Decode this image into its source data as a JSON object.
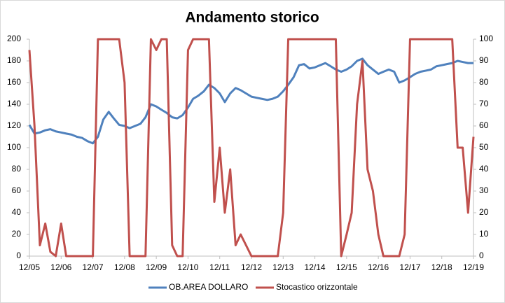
{
  "chart_data": {
    "type": "line",
    "title": "Andamento storico",
    "x": [
      2005.92,
      2006.08,
      2006.25,
      2006.42,
      2006.58,
      2006.75,
      2006.92,
      2007.08,
      2007.25,
      2007.42,
      2007.58,
      2007.75,
      2007.92,
      2008.08,
      2008.25,
      2008.42,
      2008.58,
      2008.75,
      2008.92,
      2009.08,
      2009.25,
      2009.42,
      2009.58,
      2009.75,
      2009.92,
      2010.08,
      2010.25,
      2010.42,
      2010.58,
      2010.75,
      2010.92,
      2011.08,
      2011.25,
      2011.42,
      2011.58,
      2011.75,
      2011.92,
      2012.08,
      2012.25,
      2012.42,
      2012.58,
      2012.75,
      2012.92,
      2013.08,
      2013.25,
      2013.42,
      2013.58,
      2013.75,
      2013.92,
      2014.08,
      2014.25,
      2014.42,
      2014.58,
      2014.75,
      2014.92,
      2015.08,
      2015.25,
      2015.42,
      2015.58,
      2015.75,
      2015.92,
      2016.08,
      2016.25,
      2016.42,
      2016.58,
      2016.75,
      2016.92,
      2017.08,
      2017.25,
      2017.42,
      2017.58,
      2017.75,
      2017.92,
      2018.08,
      2018.25,
      2018.42,
      2018.58,
      2018.75,
      2018.92,
      2019.08,
      2019.25,
      2019.42,
      2019.58,
      2019.75,
      2019.92
    ],
    "series": [
      {
        "name": "OB.AREA DOLLARO",
        "color": "#4f81bd",
        "values": [
          121,
          113,
          114,
          116,
          117,
          115,
          114,
          113,
          112,
          110,
          109,
          106,
          104,
          110,
          126,
          133,
          127,
          121,
          120,
          118,
          120,
          122,
          128,
          140,
          138,
          135,
          132,
          128,
          127,
          130,
          137,
          145,
          148,
          152,
          158,
          155,
          150,
          142,
          150,
          155,
          153,
          150,
          147,
          146,
          145,
          144,
          145,
          147,
          152,
          158,
          165,
          176,
          177,
          173,
          174,
          176,
          178,
          175,
          172,
          170,
          172,
          175,
          180,
          182,
          176,
          172,
          168,
          170,
          172,
          170,
          160,
          162,
          165,
          168,
          170,
          171,
          172,
          175,
          176,
          177,
          178,
          180,
          179,
          178,
          178
        ]
      },
      {
        "name": "Stocastico orizzontale",
        "color": "#c0504d",
        "axis": "y2",
        "values": [
          95,
          60,
          5,
          15,
          2,
          0,
          15,
          0,
          0,
          0,
          0,
          0,
          0,
          100,
          100,
          100,
          100,
          100,
          80,
          0,
          0,
          0,
          0,
          100,
          95,
          100,
          100,
          5,
          0,
          0,
          95,
          100,
          100,
          100,
          100,
          25,
          50,
          20,
          40,
          5,
          10,
          5,
          0,
          0,
          0,
          0,
          0,
          0,
          20,
          100,
          100,
          100,
          100,
          100,
          100,
          100,
          100,
          100,
          100,
          0,
          10,
          20,
          70,
          90,
          40,
          30,
          10,
          0,
          0,
          0,
          0,
          10,
          100,
          100,
          100,
          100,
          100,
          100,
          100,
          100,
          100,
          50,
          50,
          20,
          55
        ]
      }
    ],
    "xlim": [
      2005.92,
      2019.92
    ],
    "xticks": [
      {
        "value": 2005.92,
        "label": "12/05"
      },
      {
        "value": 2006.92,
        "label": "12/06"
      },
      {
        "value": 2007.92,
        "label": "12/07"
      },
      {
        "value": 2008.92,
        "label": "12/08"
      },
      {
        "value": 2009.92,
        "label": "12/09"
      },
      {
        "value": 2010.92,
        "label": "12/10"
      },
      {
        "value": 2011.92,
        "label": "12/11"
      },
      {
        "value": 2012.92,
        "label": "12/12"
      },
      {
        "value": 2013.92,
        "label": "12/13"
      },
      {
        "value": 2014.92,
        "label": "12/14"
      },
      {
        "value": 2015.92,
        "label": "12/15"
      },
      {
        "value": 2016.92,
        "label": "12/16"
      },
      {
        "value": 2017.92,
        "label": "12/17"
      },
      {
        "value": 2018.92,
        "label": "12/18"
      },
      {
        "value": 2019.92,
        "label": "12/19"
      }
    ],
    "ylim": [
      0,
      200
    ],
    "yticks": [
      0,
      20,
      40,
      60,
      80,
      100,
      120,
      140,
      160,
      180,
      200
    ],
    "y2lim": [
      0,
      100
    ],
    "y2ticks": [
      0,
      10,
      20,
      30,
      40,
      50,
      60,
      70,
      80,
      90,
      100
    ],
    "legend": "bottom"
  }
}
